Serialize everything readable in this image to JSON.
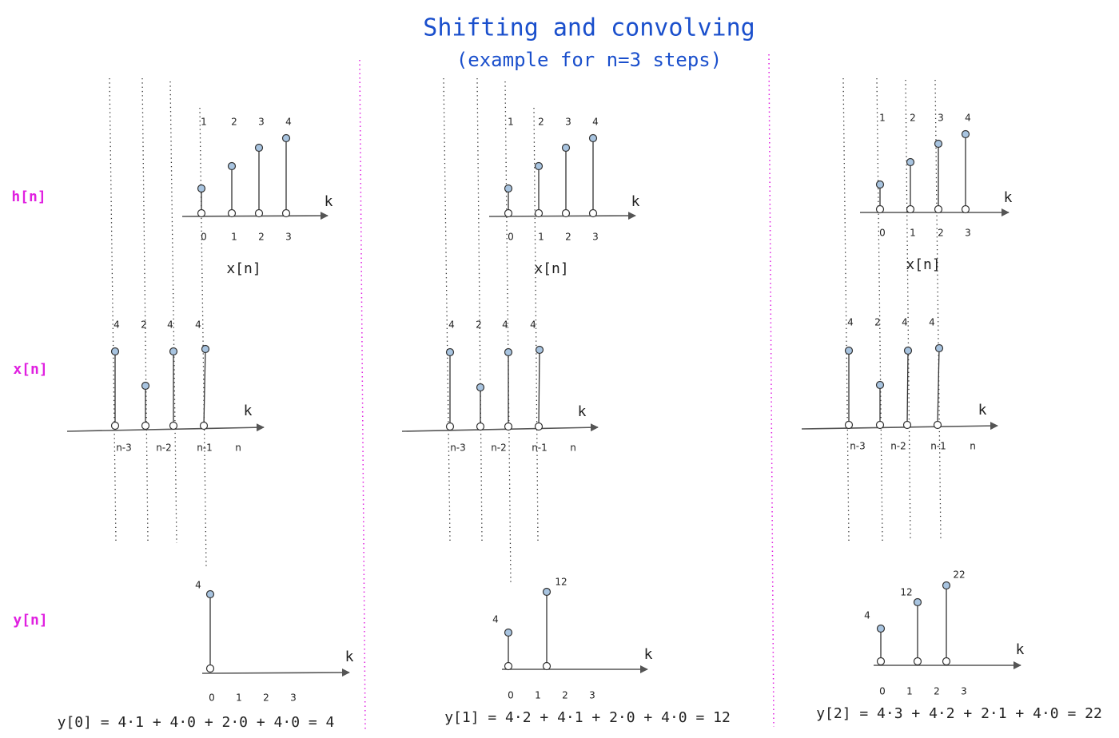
{
  "header": {
    "title": "Shifting and convolving",
    "subtitle": "(example for n=3 steps)"
  },
  "rows": {
    "h": "h[n]",
    "x": "x[n]",
    "y": "y[n]"
  },
  "panels": [
    {
      "h": {
        "labels": [
          "1",
          "2",
          "3",
          "4"
        ],
        "axis": "k",
        "index": [
          "0",
          "1",
          "2",
          "3"
        ],
        "caption": "x[n]"
      },
      "x": {
        "labels": [
          "4",
          "2",
          "4",
          "4"
        ],
        "axis": "k",
        "index": [
          "n-3",
          "n-2",
          "n-1",
          "n"
        ]
      },
      "y": {
        "labels": [
          "4"
        ],
        "axis": "k",
        "index": [
          "0",
          "1",
          "2",
          "3"
        ],
        "equation": "y[0] = 4·1 + 4·0 + 2·0 + 4·0 = 4"
      }
    },
    {
      "h": {
        "labels": [
          "1",
          "2",
          "3",
          "4"
        ],
        "axis": "k",
        "index": [
          "0",
          "1",
          "2",
          "3"
        ],
        "caption": "x[n]"
      },
      "x": {
        "labels": [
          "4",
          "2",
          "4",
          "4"
        ],
        "axis": "k",
        "index": [
          "n-3",
          "n-2",
          "n-1",
          "n"
        ]
      },
      "y": {
        "labels": [
          "4",
          "12"
        ],
        "axis": "k",
        "index": [
          "0",
          "1",
          "2",
          "3"
        ],
        "equation": "y[1] = 4·2 + 4·1 + 2·0 + 4·0 = 12"
      }
    },
    {
      "h": {
        "labels": [
          "1",
          "2",
          "3",
          "4"
        ],
        "axis": "k",
        "index": [
          "0",
          "1",
          "2",
          "3"
        ],
        "caption": "x[n]"
      },
      "x": {
        "labels": [
          "4",
          "2",
          "4",
          "4"
        ],
        "axis": "k",
        "index": [
          "n-3",
          "n-2",
          "n-1",
          "n"
        ]
      },
      "y": {
        "labels": [
          "4",
          "12",
          "22"
        ],
        "axis": "k",
        "index": [
          "0",
          "1",
          "2",
          "3"
        ],
        "equation": "y[2] = 4·3 + 4·2 + 2·1 + 4·0 = 22"
      }
    }
  ]
}
